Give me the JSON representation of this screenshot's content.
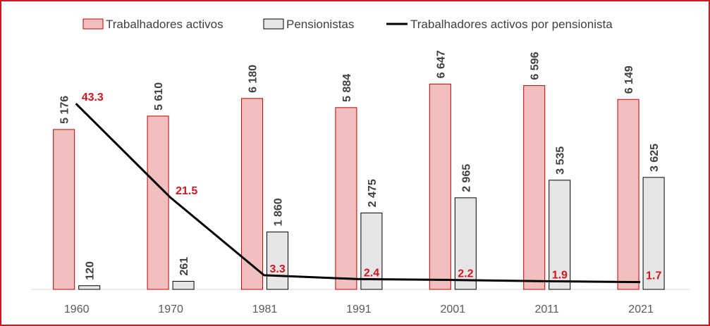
{
  "chart_data": {
    "type": "bar",
    "title": "",
    "categories": [
      "1960",
      "1970",
      "1981",
      "1991",
      "2001",
      "2011",
      "2021"
    ],
    "series": [
      {
        "name": "Trabalhadores activos",
        "kind": "bar",
        "axis": "primary",
        "values": [
          5176,
          5610,
          6180,
          5884,
          6647,
          6596,
          6149
        ],
        "labels": [
          "5 176",
          "5 610",
          "6 180",
          "5 884",
          "6 647",
          "6 596",
          "6 149"
        ],
        "fill": "#f2bfbf",
        "stroke": "#c00000"
      },
      {
        "name": "Pensionistas",
        "kind": "bar",
        "axis": "primary",
        "values": [
          120,
          261,
          1860,
          2475,
          2965,
          3535,
          3625
        ],
        "labels": [
          "120",
          "261",
          "1 860",
          "2 475",
          "2 965",
          "3 535",
          "3 625"
        ],
        "fill": "#e6e6e6",
        "stroke": "#000000"
      },
      {
        "name": "Trabalhadores activos por pensionista",
        "kind": "line",
        "axis": "secondary",
        "values": [
          43.3,
          21.5,
          3.3,
          2.4,
          2.2,
          1.9,
          1.7
        ],
        "labels": [
          "43.3",
          "21.5",
          "3.3",
          "2.4",
          "2.2",
          "1.9",
          "1.7"
        ],
        "stroke": "#000000",
        "label_color": "#d0161e"
      }
    ],
    "ylim": [
      0,
      8000
    ],
    "y2lim": [
      0,
      57.6
    ],
    "grid": false,
    "legend": "top",
    "xlabel": "",
    "ylabel": ""
  }
}
